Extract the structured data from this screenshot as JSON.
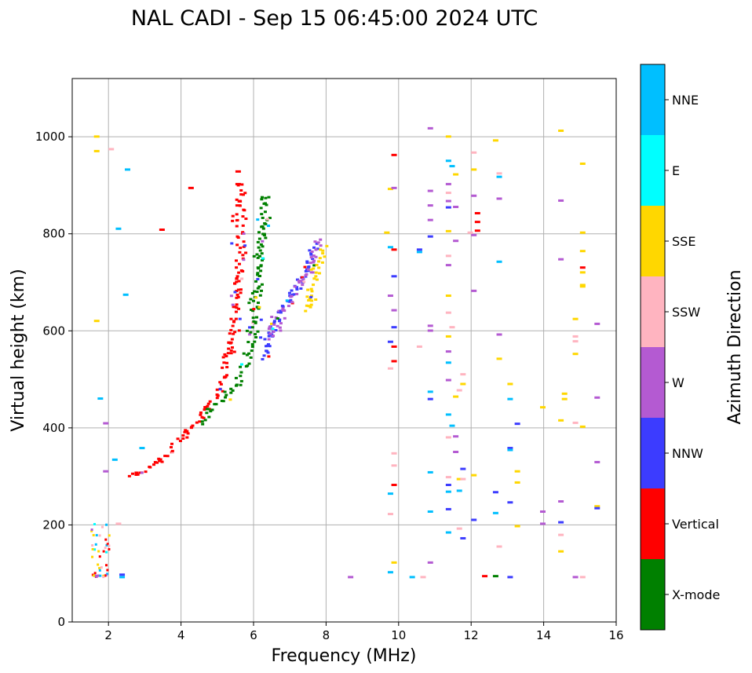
{
  "chart_data": {
    "type": "scatter",
    "title": "NAL CADI - Sep 15 06:45:00 2024 UTC",
    "xlabel": "Frequency (MHz)",
    "ylabel": "Virtual height (km)",
    "xlim": [
      1,
      16
    ],
    "ylim": [
      0,
      1120
    ],
    "xticks": [
      2,
      4,
      6,
      8,
      10,
      12,
      14,
      16
    ],
    "yticks": [
      0,
      200,
      400,
      600,
      800,
      1000
    ],
    "grid": true,
    "colorbar": {
      "label": "Azimuth Direction",
      "categories": [
        {
          "name": "X-mode",
          "color": "#008000"
        },
        {
          "name": "Vertical",
          "color": "#ff0000"
        },
        {
          "name": "NNW",
          "color": "#3c3cff"
        },
        {
          "name": "W",
          "color": "#b45ad2"
        },
        {
          "name": "SSW",
          "color": "#ffb4c0"
        },
        {
          "name": "SSE",
          "color": "#ffd700"
        },
        {
          "name": "E",
          "color": "#00ffff"
        },
        {
          "name": "NNE",
          "color": "#00bfff"
        }
      ]
    },
    "trace_centers": [
      {
        "name": "Vertical",
        "points": [
          [
            2.5,
            300
          ],
          [
            3.0,
            308
          ],
          [
            3.5,
            335
          ],
          [
            4.0,
            380
          ],
          [
            4.5,
            420
          ],
          [
            5.0,
            480
          ],
          [
            5.3,
            560
          ],
          [
            5.5,
            650
          ],
          [
            5.6,
            760
          ],
          [
            5.6,
            900
          ]
        ]
      },
      {
        "name": "X-mode",
        "points": [
          [
            4.5,
            410
          ],
          [
            5.0,
            450
          ],
          [
            5.5,
            490
          ],
          [
            5.8,
            540
          ],
          [
            6.0,
            600
          ],
          [
            6.1,
            700
          ],
          [
            6.2,
            800
          ],
          [
            6.3,
            880
          ]
        ]
      },
      {
        "name": "NNW",
        "points": [
          [
            6.2,
            540
          ],
          [
            6.5,
            600
          ],
          [
            6.8,
            650
          ],
          [
            7.1,
            680
          ],
          [
            7.4,
            720
          ],
          [
            7.7,
            780
          ]
        ]
      },
      {
        "name": "W",
        "points": [
          [
            6.4,
            580
          ],
          [
            6.8,
            640
          ],
          [
            7.2,
            690
          ],
          [
            7.6,
            740
          ],
          [
            7.8,
            790
          ]
        ]
      },
      {
        "name": "SSE",
        "points": [
          [
            7.4,
            640
          ],
          [
            7.6,
            700
          ],
          [
            7.9,
            780
          ]
        ]
      }
    ],
    "low_cluster": {
      "freq_range": [
        1.5,
        2.0
      ],
      "height_range": [
        90,
        200
      ]
    },
    "sparse_points": [
      {
        "f": 1.6,
        "h": 998,
        "c": "SSE"
      },
      {
        "f": 1.6,
        "h": 968,
        "c": "SSE"
      },
      {
        "f": 2.0,
        "h": 972,
        "c": "SSW"
      },
      {
        "f": 2.45,
        "h": 930,
        "c": "NNE"
      },
      {
        "f": 2.2,
        "h": 808,
        "c": "NNE"
      },
      {
        "f": 2.4,
        "h": 672,
        "c": "NNE"
      },
      {
        "f": 1.6,
        "h": 618,
        "c": "SSE"
      },
      {
        "f": 1.7,
        "h": 458,
        "c": "NNE"
      },
      {
        "f": 1.85,
        "h": 407,
        "c": "W"
      },
      {
        "f": 2.1,
        "h": 332,
        "c": "NNE"
      },
      {
        "f": 2.85,
        "h": 356,
        "c": "NNE"
      },
      {
        "f": 1.85,
        "h": 308,
        "c": "W"
      },
      {
        "f": 2.2,
        "h": 200,
        "c": "SSW"
      },
      {
        "f": 2.3,
        "h": 95,
        "c": "NNW"
      },
      {
        "f": 2.3,
        "h": 90,
        "c": "NNE"
      },
      {
        "f": 4.2,
        "h": 892,
        "c": "Vertical"
      },
      {
        "f": 3.4,
        "h": 806,
        "c": "Vertical"
      },
      {
        "f": 5.5,
        "h": 926,
        "c": "Vertical"
      },
      {
        "f": 5.5,
        "h": 900,
        "c": "Vertical"
      },
      {
        "f": 5.5,
        "h": 856,
        "c": "Vertical"
      },
      {
        "f": 8.6,
        "h": 90,
        "c": "W"
      },
      {
        "f": 9.6,
        "h": 800,
        "c": "SSE"
      },
      {
        "f": 9.7,
        "h": 890,
        "c": "SSE"
      },
      {
        "f": 9.7,
        "h": 770,
        "c": "NNE"
      },
      {
        "f": 9.8,
        "h": 765,
        "c": "Vertical"
      },
      {
        "f": 9.8,
        "h": 960,
        "c": "Vertical"
      },
      {
        "f": 9.8,
        "h": 892,
        "c": "W"
      },
      {
        "f": 9.7,
        "h": 670,
        "c": "W"
      },
      {
        "f": 9.8,
        "h": 640,
        "c": "W"
      },
      {
        "f": 9.8,
        "h": 605,
        "c": "NNW"
      },
      {
        "f": 9.7,
        "h": 575,
        "c": "NNW"
      },
      {
        "f": 9.8,
        "h": 565,
        "c": "Vertical"
      },
      {
        "f": 9.8,
        "h": 535,
        "c": "Vertical"
      },
      {
        "f": 9.7,
        "h": 520,
        "c": "SSW"
      },
      {
        "f": 9.8,
        "h": 710,
        "c": "NNW"
      },
      {
        "f": 9.8,
        "h": 345,
        "c": "SSW"
      },
      {
        "f": 9.8,
        "h": 320,
        "c": "SSW"
      },
      {
        "f": 9.8,
        "h": 280,
        "c": "Vertical"
      },
      {
        "f": 9.7,
        "h": 262,
        "c": "NNE"
      },
      {
        "f": 9.7,
        "h": 220,
        "c": "SSW"
      },
      {
        "f": 9.8,
        "h": 120,
        "c": "SSE"
      },
      {
        "f": 9.7,
        "h": 100,
        "c": "NNE"
      },
      {
        "f": 10.3,
        "h": 90,
        "c": "NNE"
      },
      {
        "f": 10.5,
        "h": 765,
        "c": "NNW"
      },
      {
        "f": 10.5,
        "h": 760,
        "c": "NNE"
      },
      {
        "f": 10.5,
        "h": 565,
        "c": "SSW"
      },
      {
        "f": 10.6,
        "h": 90,
        "c": "SSW"
      },
      {
        "f": 10.8,
        "h": 1015,
        "c": "W"
      },
      {
        "f": 10.8,
        "h": 886,
        "c": "W"
      },
      {
        "f": 10.8,
        "h": 856,
        "c": "W"
      },
      {
        "f": 10.8,
        "h": 826,
        "c": "W"
      },
      {
        "f": 10.8,
        "h": 792,
        "c": "NNW"
      },
      {
        "f": 10.8,
        "h": 608,
        "c": "W"
      },
      {
        "f": 10.8,
        "h": 598,
        "c": "W"
      },
      {
        "f": 10.8,
        "h": 472,
        "c": "NNE"
      },
      {
        "f": 10.8,
        "h": 457,
        "c": "NNW"
      },
      {
        "f": 10.8,
        "h": 306,
        "c": "NNE"
      },
      {
        "f": 10.8,
        "h": 225,
        "c": "NNE"
      },
      {
        "f": 10.8,
        "h": 120,
        "c": "W"
      },
      {
        "f": 11.3,
        "h": 998,
        "c": "SSE"
      },
      {
        "f": 11.3,
        "h": 948,
        "c": "NNE"
      },
      {
        "f": 11.4,
        "h": 937,
        "c": "NNE"
      },
      {
        "f": 11.3,
        "h": 900,
        "c": "W"
      },
      {
        "f": 11.3,
        "h": 882,
        "c": "SSW"
      },
      {
        "f": 11.3,
        "h": 865,
        "c": "W"
      },
      {
        "f": 11.3,
        "h": 852,
        "c": "NNW"
      },
      {
        "f": 11.5,
        "h": 853,
        "c": "W"
      },
      {
        "f": 11.5,
        "h": 920,
        "c": "SSE"
      },
      {
        "f": 11.3,
        "h": 803,
        "c": "SSE"
      },
      {
        "f": 11.5,
        "h": 783,
        "c": "W"
      },
      {
        "f": 11.3,
        "h": 752,
        "c": "SSW"
      },
      {
        "f": 11.3,
        "h": 733,
        "c": "W"
      },
      {
        "f": 11.3,
        "h": 670,
        "c": "SSE"
      },
      {
        "f": 11.3,
        "h": 635,
        "c": "SSW"
      },
      {
        "f": 11.4,
        "h": 605,
        "c": "SSW"
      },
      {
        "f": 11.3,
        "h": 586,
        "c": "SSE"
      },
      {
        "f": 11.3,
        "h": 555,
        "c": "W"
      },
      {
        "f": 11.3,
        "h": 532,
        "c": "NNE"
      },
      {
        "f": 11.3,
        "h": 496,
        "c": "W"
      },
      {
        "f": 11.5,
        "h": 462,
        "c": "SSE"
      },
      {
        "f": 11.6,
        "h": 475,
        "c": "SSW"
      },
      {
        "f": 11.7,
        "h": 508,
        "c": "SSW"
      },
      {
        "f": 11.7,
        "h": 488,
        "c": "SSE"
      },
      {
        "f": 11.3,
        "h": 425,
        "c": "NNE"
      },
      {
        "f": 11.4,
        "h": 402,
        "c": "NNE"
      },
      {
        "f": 11.3,
        "h": 378,
        "c": "SSW"
      },
      {
        "f": 11.5,
        "h": 380,
        "c": "W"
      },
      {
        "f": 11.5,
        "h": 348,
        "c": "W"
      },
      {
        "f": 11.3,
        "h": 296,
        "c": "SSW"
      },
      {
        "f": 11.3,
        "h": 280,
        "c": "NNW"
      },
      {
        "f": 11.3,
        "h": 266,
        "c": "NNE"
      },
      {
        "f": 11.6,
        "h": 268,
        "c": "NNE"
      },
      {
        "f": 11.6,
        "h": 292,
        "c": "SSE"
      },
      {
        "f": 11.7,
        "h": 313,
        "c": "NNW"
      },
      {
        "f": 11.7,
        "h": 292,
        "c": "SSW"
      },
      {
        "f": 11.3,
        "h": 230,
        "c": "NNW"
      },
      {
        "f": 11.3,
        "h": 182,
        "c": "NNE"
      },
      {
        "f": 11.6,
        "h": 190,
        "c": "SSW"
      },
      {
        "f": 11.7,
        "h": 170,
        "c": "NNW"
      },
      {
        "f": 12.0,
        "h": 965,
        "c": "SSW"
      },
      {
        "f": 12.0,
        "h": 930,
        "c": "SSE"
      },
      {
        "f": 12.0,
        "h": 876,
        "c": "W"
      },
      {
        "f": 12.1,
        "h": 840,
        "c": "Vertical"
      },
      {
        "f": 12.1,
        "h": 822,
        "c": "Vertical"
      },
      {
        "f": 12.1,
        "h": 804,
        "c": "Vertical"
      },
      {
        "f": 12.0,
        "h": 795,
        "c": "W"
      },
      {
        "f": 11.9,
        "h": 800,
        "c": "SSW"
      },
      {
        "f": 12.0,
        "h": 680,
        "c": "W"
      },
      {
        "f": 12.0,
        "h": 300,
        "c": "SSE"
      },
      {
        "f": 12.0,
        "h": 208,
        "c": "NNW"
      },
      {
        "f": 12.3,
        "h": 92,
        "c": "Vertical"
      },
      {
        "f": 12.6,
        "h": 92,
        "c": "X-mode"
      },
      {
        "f": 12.6,
        "h": 990,
        "c": "SSE"
      },
      {
        "f": 12.7,
        "h": 922,
        "c": "SSW"
      },
      {
        "f": 12.7,
        "h": 915,
        "c": "NNE"
      },
      {
        "f": 12.7,
        "h": 870,
        "c": "W"
      },
      {
        "f": 12.7,
        "h": 740,
        "c": "NNE"
      },
      {
        "f": 12.7,
        "h": 590,
        "c": "W"
      },
      {
        "f": 12.7,
        "h": 540,
        "c": "SSE"
      },
      {
        "f": 13.0,
        "h": 488,
        "c": "SSE"
      },
      {
        "f": 13.0,
        "h": 457,
        "c": "NNE"
      },
      {
        "f": 13.2,
        "h": 406,
        "c": "NNW"
      },
      {
        "f": 13.0,
        "h": 356,
        "c": "NNW"
      },
      {
        "f": 13.0,
        "h": 352,
        "c": "NNE"
      },
      {
        "f": 13.2,
        "h": 308,
        "c": "SSE"
      },
      {
        "f": 13.2,
        "h": 285,
        "c": "SSE"
      },
      {
        "f": 12.6,
        "h": 265,
        "c": "NNW"
      },
      {
        "f": 13.0,
        "h": 244,
        "c": "NNW"
      },
      {
        "f": 12.6,
        "h": 222,
        "c": "NNE"
      },
      {
        "f": 13.2,
        "h": 195,
        "c": "SSE"
      },
      {
        "f": 12.7,
        "h": 153,
        "c": "SSW"
      },
      {
        "f": 13.0,
        "h": 90,
        "c": "NNW"
      },
      {
        "f": 13.9,
        "h": 440,
        "c": "SSE"
      },
      {
        "f": 13.9,
        "h": 225,
        "c": "W"
      },
      {
        "f": 13.9,
        "h": 200,
        "c": "W"
      },
      {
        "f": 14.4,
        "h": 1010,
        "c": "SSE"
      },
      {
        "f": 14.4,
        "h": 866,
        "c": "W"
      },
      {
        "f": 14.4,
        "h": 745,
        "c": "W"
      },
      {
        "f": 14.5,
        "h": 468,
        "c": "SSE"
      },
      {
        "f": 14.5,
        "h": 457,
        "c": "SSE"
      },
      {
        "f": 14.4,
        "h": 413,
        "c": "SSE"
      },
      {
        "f": 14.4,
        "h": 246,
        "c": "W"
      },
      {
        "f": 14.4,
        "h": 203,
        "c": "NNW"
      },
      {
        "f": 14.4,
        "h": 177,
        "c": "SSW"
      },
      {
        "f": 14.4,
        "h": 143,
        "c": "SSE"
      },
      {
        "f": 14.8,
        "h": 90,
        "c": "W"
      },
      {
        "f": 15.0,
        "h": 90,
        "c": "SSW"
      },
      {
        "f": 14.8,
        "h": 622,
        "c": "SSE"
      },
      {
        "f": 14.8,
        "h": 586,
        "c": "SSW"
      },
      {
        "f": 14.8,
        "h": 576,
        "c": "SSW"
      },
      {
        "f": 14.8,
        "h": 550,
        "c": "SSE"
      },
      {
        "f": 14.8,
        "h": 408,
        "c": "SSW"
      },
      {
        "f": 15.0,
        "h": 400,
        "c": "SSE"
      },
      {
        "f": 15.0,
        "h": 942,
        "c": "SSE"
      },
      {
        "f": 15.0,
        "h": 800,
        "c": "SSE"
      },
      {
        "f": 15.0,
        "h": 762,
        "c": "SSE"
      },
      {
        "f": 15.0,
        "h": 728,
        "c": "Vertical"
      },
      {
        "f": 15.0,
        "h": 718,
        "c": "SSE"
      },
      {
        "f": 15.0,
        "h": 692,
        "c": "SSE"
      },
      {
        "f": 15.0,
        "h": 689,
        "c": "SSE"
      },
      {
        "f": 15.4,
        "h": 612,
        "c": "W"
      },
      {
        "f": 15.4,
        "h": 460,
        "c": "W"
      },
      {
        "f": 15.4,
        "h": 327,
        "c": "W"
      },
      {
        "f": 15.4,
        "h": 236,
        "c": "SSE"
      },
      {
        "f": 15.4,
        "h": 232,
        "c": "NNW"
      }
    ]
  }
}
